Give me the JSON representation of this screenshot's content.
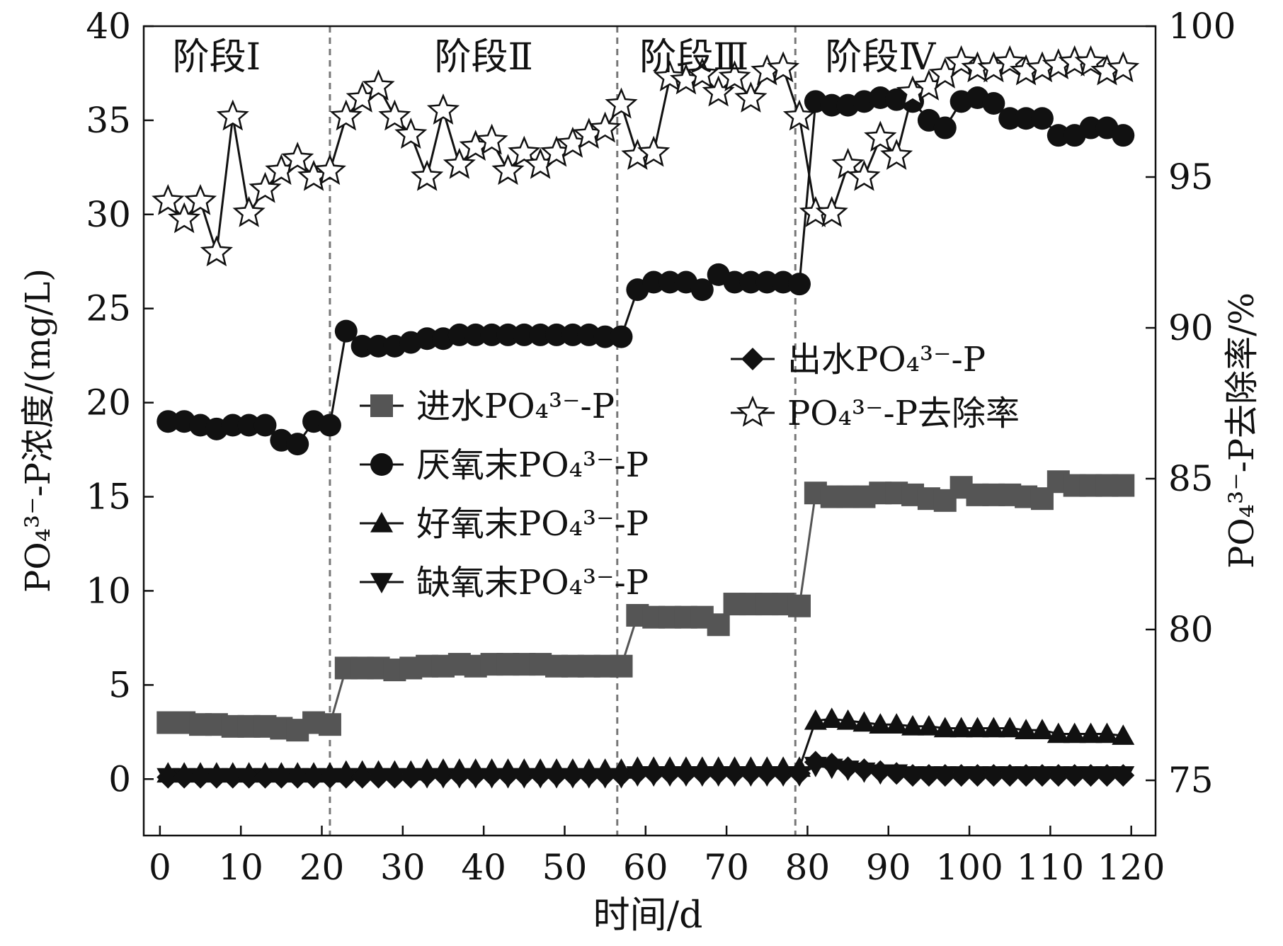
{
  "chart_data": {
    "type": "line",
    "xlabel": "时间/d",
    "ylabel_left": "PO₄³⁻-P浓度/(mg/L)",
    "ylabel_right": "PO₄³⁻-P去除率/%",
    "xlim": [
      -2,
      123
    ],
    "ylim_left": [
      -3,
      40
    ],
    "ylim_right": [
      73.17,
      100
    ],
    "x_ticks": [
      "0",
      "10",
      "20",
      "30",
      "40",
      "50",
      "60",
      "70",
      "80",
      "90",
      "100",
      "110",
      "120"
    ],
    "y_ticks_left": [
      "0",
      "5",
      "10",
      "15",
      "20",
      "25",
      "30",
      "35",
      "40"
    ],
    "y_ticks_right": [
      "75",
      "80",
      "85",
      "90",
      "95",
      "100"
    ],
    "grid": false,
    "legend_position": "center",
    "stage_boundaries": [
      21,
      56.5,
      78.5
    ],
    "stages": [
      {
        "label": "阶段Ⅰ",
        "x": 7
      },
      {
        "label": "阶段Ⅱ",
        "x": 40
      },
      {
        "label": "阶段Ⅲ",
        "x": 66
      },
      {
        "label": "阶段Ⅳ",
        "x": 89
      }
    ],
    "series": [
      {
        "name": "进水PO₄³⁻-P",
        "marker": "square",
        "axis": "left",
        "color": "#555555",
        "x": [
          1,
          3,
          5,
          7,
          9,
          11,
          13,
          15,
          17,
          19,
          21,
          23,
          25,
          27,
          29,
          31,
          33,
          35,
          37,
          39,
          41,
          43,
          45,
          47,
          49,
          51,
          53,
          55,
          57,
          59,
          61,
          63,
          65,
          67,
          69,
          71,
          73,
          75,
          77,
          79,
          81,
          83,
          85,
          87,
          89,
          91,
          93,
          95,
          97,
          99,
          101,
          103,
          105,
          107,
          109,
          111,
          113,
          115,
          117,
          119
        ],
        "y": [
          3.0,
          3.0,
          2.9,
          2.9,
          2.8,
          2.8,
          2.8,
          2.7,
          2.6,
          3.0,
          2.9,
          5.9,
          5.9,
          5.9,
          5.8,
          5.9,
          6.0,
          6.0,
          6.1,
          6.0,
          6.1,
          6.1,
          6.1,
          6.1,
          6.0,
          6.0,
          6.0,
          6.0,
          6.0,
          8.7,
          8.6,
          8.6,
          8.6,
          8.6,
          8.2,
          9.3,
          9.3,
          9.3,
          9.3,
          9.2,
          15.2,
          15.0,
          15.0,
          15.0,
          15.2,
          15.2,
          15.1,
          14.9,
          14.8,
          15.5,
          15.1,
          15.1,
          15.1,
          15.0,
          14.9,
          15.8,
          15.6,
          15.6,
          15.6,
          15.6
        ]
      },
      {
        "name": "厌氧末PO₄³⁻-P",
        "marker": "circle",
        "axis": "left",
        "color": "#111111",
        "x": [
          1,
          3,
          5,
          7,
          9,
          11,
          13,
          15,
          17,
          19,
          21,
          23,
          25,
          27,
          29,
          31,
          33,
          35,
          37,
          39,
          41,
          43,
          45,
          47,
          49,
          51,
          53,
          55,
          57,
          59,
          61,
          63,
          65,
          67,
          69,
          71,
          73,
          75,
          77,
          79,
          81,
          83,
          85,
          87,
          89,
          91,
          93,
          95,
          97,
          99,
          101,
          103,
          105,
          107,
          109,
          111,
          113,
          115,
          117,
          119
        ],
        "y": [
          19.0,
          19.0,
          18.8,
          18.6,
          18.8,
          18.8,
          18.8,
          18.0,
          17.8,
          19.0,
          18.8,
          23.8,
          23.0,
          23.0,
          23.0,
          23.2,
          23.4,
          23.4,
          23.6,
          23.6,
          23.6,
          23.6,
          23.6,
          23.6,
          23.6,
          23.6,
          23.6,
          23.5,
          23.5,
          26.0,
          26.4,
          26.4,
          26.4,
          26.0,
          26.8,
          26.4,
          26.4,
          26.4,
          26.4,
          26.3,
          36.0,
          35.8,
          35.8,
          36.0,
          36.2,
          36.1,
          36.0,
          35.0,
          34.6,
          36.0,
          36.2,
          35.9,
          35.1,
          35.1,
          35.1,
          34.2,
          34.2,
          34.6,
          34.6,
          34.2
        ]
      },
      {
        "name": "好氧末PO₄³⁻-P",
        "marker": "triangle-up",
        "axis": "left",
        "color": "#111111",
        "x": [
          1,
          3,
          5,
          7,
          9,
          11,
          13,
          15,
          17,
          19,
          21,
          23,
          25,
          27,
          29,
          31,
          33,
          35,
          37,
          39,
          41,
          43,
          45,
          47,
          49,
          51,
          53,
          55,
          57,
          59,
          61,
          63,
          65,
          67,
          69,
          71,
          73,
          75,
          77,
          79,
          81,
          83,
          85,
          87,
          89,
          91,
          93,
          95,
          97,
          99,
          101,
          103,
          105,
          107,
          109,
          111,
          113,
          115,
          117,
          119
        ],
        "y": [
          0.3,
          0.3,
          0.3,
          0.3,
          0.3,
          0.3,
          0.3,
          0.3,
          0.3,
          0.3,
          0.3,
          0.4,
          0.4,
          0.4,
          0.4,
          0.4,
          0.5,
          0.5,
          0.5,
          0.5,
          0.5,
          0.5,
          0.5,
          0.5,
          0.5,
          0.5,
          0.5,
          0.5,
          0.5,
          0.6,
          0.6,
          0.6,
          0.6,
          0.6,
          0.6,
          0.6,
          0.6,
          0.6,
          0.6,
          0.6,
          3.1,
          3.2,
          3.1,
          3.0,
          2.9,
          2.9,
          2.8,
          2.8,
          2.7,
          2.7,
          2.7,
          2.7,
          2.7,
          2.6,
          2.6,
          2.4,
          2.4,
          2.4,
          2.4,
          2.3
        ]
      },
      {
        "name": "缺氧末PO₄³⁻-P",
        "marker": "triangle-down",
        "axis": "left",
        "color": "#111111",
        "x": [
          1,
          3,
          5,
          7,
          9,
          11,
          13,
          15,
          17,
          19,
          21,
          23,
          25,
          27,
          29,
          31,
          33,
          35,
          37,
          39,
          41,
          43,
          45,
          47,
          49,
          51,
          53,
          55,
          57,
          59,
          61,
          63,
          65,
          67,
          69,
          71,
          73,
          75,
          77,
          79,
          81,
          83,
          85,
          87,
          89,
          91,
          93,
          95,
          97,
          99,
          101,
          103,
          105,
          107,
          109,
          111,
          113,
          115,
          117,
          119
        ],
        "y": [
          0.1,
          0.1,
          0.1,
          0.1,
          0.1,
          0.1,
          0.1,
          0.1,
          0.1,
          0.1,
          0.1,
          0.1,
          0.1,
          0.1,
          0.1,
          0.1,
          0.1,
          0.1,
          0.1,
          0.1,
          0.1,
          0.1,
          0.1,
          0.1,
          0.1,
          0.1,
          0.1,
          0.1,
          0.1,
          0.2,
          0.2,
          0.2,
          0.2,
          0.2,
          0.2,
          0.2,
          0.2,
          0.2,
          0.2,
          0.2,
          0.7,
          0.6,
          0.5,
          0.4,
          0.3,
          0.3,
          0.2,
          0.2,
          0.2,
          0.2,
          0.2,
          0.2,
          0.2,
          0.2,
          0.2,
          0.2,
          0.2,
          0.2,
          0.2,
          0.2
        ]
      },
      {
        "name": "出水PO₄³⁻-P",
        "marker": "diamond",
        "axis": "left",
        "color": "#111111",
        "x": [
          1,
          3,
          5,
          7,
          9,
          11,
          13,
          15,
          17,
          19,
          21,
          23,
          25,
          27,
          29,
          31,
          33,
          35,
          37,
          39,
          41,
          43,
          45,
          47,
          49,
          51,
          53,
          55,
          57,
          59,
          61,
          63,
          65,
          67,
          69,
          71,
          73,
          75,
          77,
          79,
          81,
          83,
          85,
          87,
          89,
          91,
          93,
          95,
          97,
          99,
          101,
          103,
          105,
          107,
          109,
          111,
          113,
          115,
          117,
          119
        ],
        "y": [
          0.1,
          0.1,
          0.1,
          0.1,
          0.1,
          0.1,
          0.1,
          0.1,
          0.1,
          0.1,
          0.1,
          0.1,
          0.1,
          0.1,
          0.1,
          0.1,
          0.2,
          0.2,
          0.2,
          0.2,
          0.2,
          0.2,
          0.2,
          0.2,
          0.2,
          0.2,
          0.2,
          0.2,
          0.2,
          0.3,
          0.3,
          0.3,
          0.3,
          0.3,
          0.3,
          0.3,
          0.3,
          0.3,
          0.3,
          0.3,
          0.9,
          0.8,
          0.6,
          0.5,
          0.4,
          0.3,
          0.2,
          0.2,
          0.2,
          0.2,
          0.2,
          0.2,
          0.2,
          0.2,
          0.2,
          0.2,
          0.2,
          0.2,
          0.2,
          0.2
        ]
      },
      {
        "name": "PO₄³⁻-P去除率",
        "marker": "star",
        "axis": "right",
        "color": "#111111",
        "x": [
          1,
          3,
          5,
          7,
          9,
          11,
          13,
          15,
          17,
          19,
          21,
          23,
          25,
          27,
          29,
          31,
          33,
          35,
          37,
          39,
          41,
          43,
          45,
          47,
          49,
          51,
          53,
          55,
          57,
          59,
          61,
          63,
          65,
          67,
          69,
          71,
          73,
          75,
          77,
          79,
          81,
          83,
          85,
          87,
          89,
          91,
          93,
          95,
          97,
          99,
          101,
          103,
          105,
          107,
          109,
          111,
          113,
          115,
          117,
          119
        ],
        "y": [
          94.2,
          93.6,
          94.2,
          92.5,
          97.0,
          93.8,
          94.6,
          95.2,
          95.6,
          95.0,
          95.2,
          97.0,
          97.6,
          98.0,
          97.0,
          96.4,
          95.0,
          97.2,
          95.4,
          96.0,
          96.2,
          95.2,
          95.8,
          95.4,
          95.8,
          96.1,
          96.4,
          96.6,
          97.4,
          95.7,
          95.8,
          98.3,
          98.2,
          98.4,
          97.8,
          98.3,
          97.6,
          98.5,
          98.6,
          97.0,
          93.8,
          93.8,
          95.4,
          95.0,
          96.3,
          95.7,
          97.8,
          98.0,
          98.4,
          98.8,
          98.6,
          98.6,
          98.8,
          98.5,
          98.6,
          98.7,
          98.8,
          98.8,
          98.5,
          98.6
        ]
      }
    ]
  }
}
